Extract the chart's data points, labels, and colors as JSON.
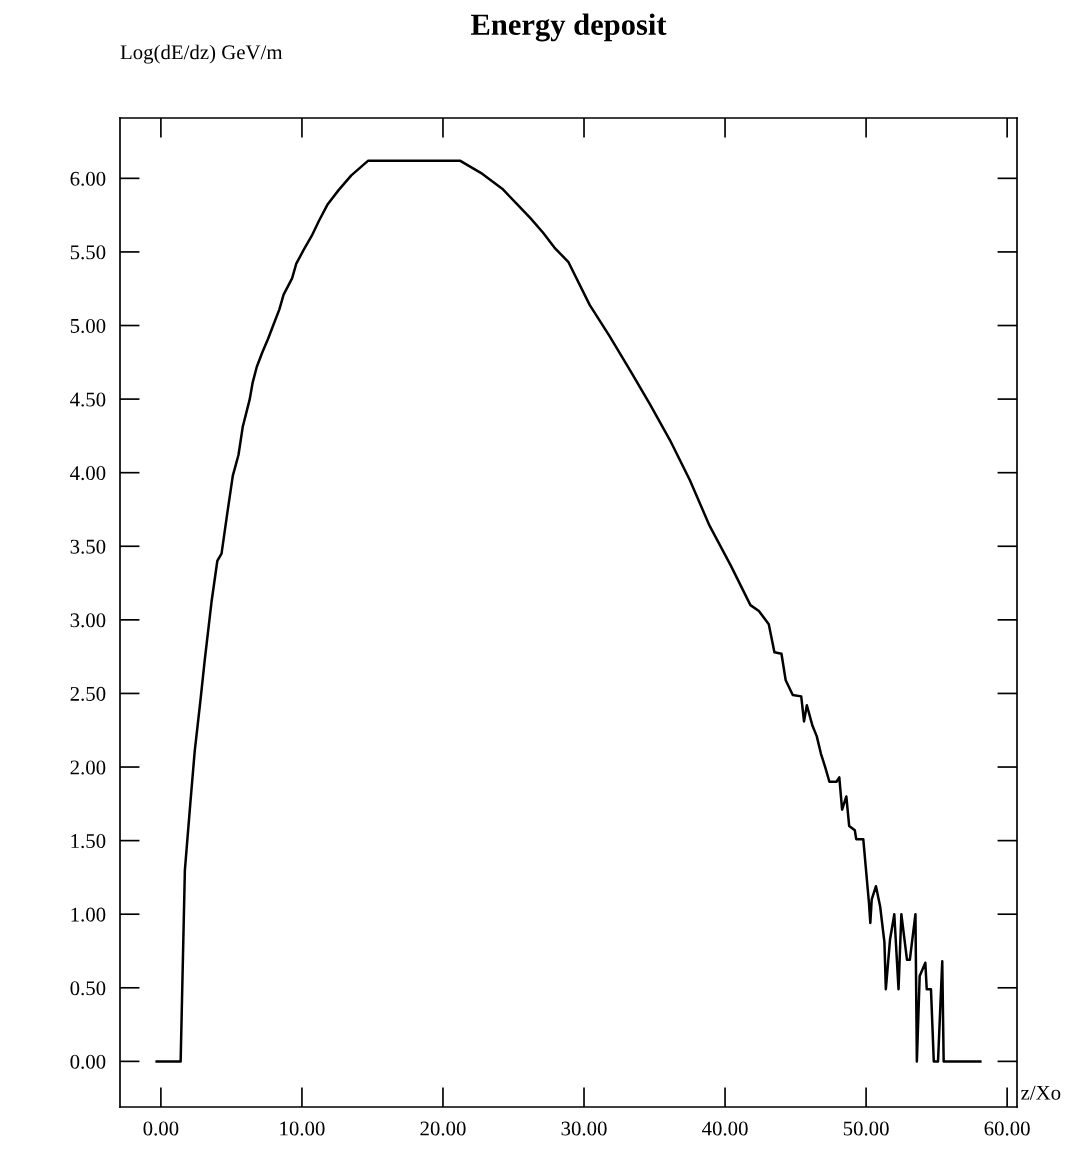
{
  "chart_data": {
    "type": "line",
    "title": "Energy deposit",
    "xlabel": "z/Xo",
    "ylabel": "Log(dE/dz) GeV/m",
    "xlim": [
      -2.9,
      60.7
    ],
    "ylim": [
      -0.31,
      6.41
    ],
    "xticks": [
      {
        "value": 0,
        "label": "0.00"
      },
      {
        "value": 10,
        "label": "10.00"
      },
      {
        "value": 20,
        "label": "20.00"
      },
      {
        "value": 30,
        "label": "30.00"
      },
      {
        "value": 40,
        "label": "40.00"
      },
      {
        "value": 50,
        "label": "50.00"
      },
      {
        "value": 60,
        "label": "60.00"
      }
    ],
    "yticks": [
      {
        "value": 0,
        "label": "0.00"
      },
      {
        "value": 0.5,
        "label": "0.50"
      },
      {
        "value": 1,
        "label": "1.00"
      },
      {
        "value": 1.5,
        "label": "1.50"
      },
      {
        "value": 2,
        "label": "2.00"
      },
      {
        "value": 2.5,
        "label": "2.50"
      },
      {
        "value": 3,
        "label": "3.00"
      },
      {
        "value": 3.5,
        "label": "3.50"
      },
      {
        "value": 4,
        "label": "4.00"
      },
      {
        "value": 4.5,
        "label": "4.50"
      },
      {
        "value": 5,
        "label": "5.00"
      },
      {
        "value": 5.5,
        "label": "5.50"
      },
      {
        "value": 6,
        "label": "6.00"
      }
    ],
    "grid": false,
    "marker": "none",
    "line_style": "solid",
    "series": [
      {
        "color": "#000000",
        "x": [
          -0.3,
          1.4,
          1.7,
          2.1,
          2.4,
          2.8,
          3.1,
          3.6,
          4.0,
          4.3,
          4.7,
          5.1,
          5.5,
          5.8,
          6.3,
          6.5,
          6.8,
          7.2,
          7.6,
          8.0,
          8.4,
          8.7,
          9.3,
          9.6,
          10.1,
          10.7,
          11.2,
          11.8,
          12.6,
          13.5,
          14.7,
          21.2,
          22.8,
          24.2,
          25.2,
          26.2,
          27.1,
          27.9,
          28.9,
          30.4,
          31.8,
          33.3,
          34.7,
          36.1,
          37.5,
          38.9,
          40.4,
          41.8,
          42.4,
          43.1,
          43.5,
          44.0,
          44.3,
          44.8,
          45.4,
          45.6,
          45.8,
          46.2,
          46.5,
          46.8,
          47.1,
          47.4,
          47.9,
          48.1,
          48.3,
          48.6,
          48.8,
          49.2,
          49.3,
          49.8,
          50.2,
          50.3,
          50.4,
          50.7,
          51.0,
          51.3,
          51.4,
          51.7,
          52.0,
          52.3,
          52.5,
          52.9,
          53.1,
          53.5,
          53.6,
          53.8,
          54.2,
          54.3,
          54.6,
          54.8,
          55.1,
          55.4,
          55.5,
          58.1
        ],
        "values": [
          0.0,
          0.0,
          1.3,
          1.77,
          2.11,
          2.45,
          2.72,
          3.13,
          3.4,
          3.45,
          3.72,
          3.98,
          4.12,
          4.31,
          4.5,
          4.61,
          4.72,
          4.82,
          4.91,
          5.01,
          5.11,
          5.21,
          5.32,
          5.42,
          5.51,
          5.61,
          5.71,
          5.82,
          5.92,
          6.02,
          6.12,
          6.12,
          6.03,
          5.93,
          5.83,
          5.73,
          5.63,
          5.53,
          5.43,
          5.14,
          4.93,
          4.69,
          4.46,
          4.22,
          3.95,
          3.64,
          3.37,
          3.1,
          3.06,
          2.97,
          2.78,
          2.77,
          2.59,
          2.49,
          2.48,
          2.31,
          2.42,
          2.28,
          2.21,
          2.09,
          2.0,
          1.9,
          1.9,
          1.93,
          1.71,
          1.8,
          1.6,
          1.57,
          1.51,
          1.51,
          1.08,
          0.94,
          1.1,
          1.19,
          1.05,
          0.81,
          0.49,
          0.83,
          1.0,
          0.49,
          1.0,
          0.69,
          0.69,
          1.0,
          0.0,
          0.58,
          0.67,
          0.49,
          0.49,
          0.0,
          0.0,
          0.68,
          0.0,
          0.0
        ]
      }
    ]
  }
}
